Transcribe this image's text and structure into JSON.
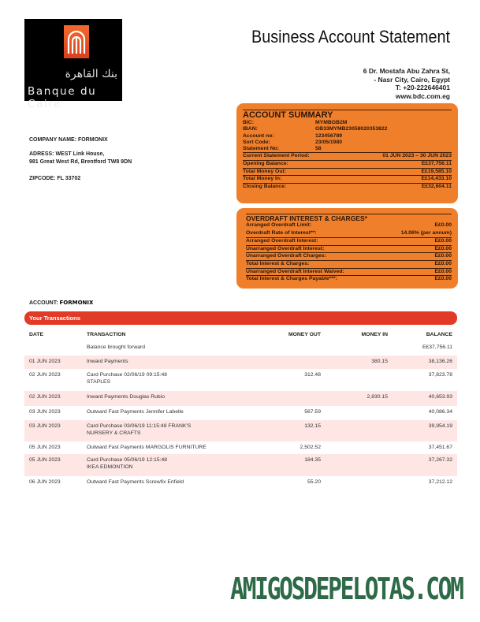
{
  "bank": {
    "name": "Banque du Caire",
    "name_ar": "بنك القاهرة",
    "brand_color": "#f26a2e"
  },
  "header": {
    "title": "Business Account Statement",
    "address": [
      "6 Dr. Mostafa Abu Zahra St,",
      "- Nasr City, Cairo, Egypt",
      "T: +20-222646401",
      "www.bdc.com.eg"
    ]
  },
  "customer": {
    "company": "COMPANY NAME: FORMONIX",
    "address_line1": "ADRESS: WEST Link House,",
    "address_line2": "981 Great West Rd, Brentford TW8 9DN",
    "zipcode": "ZIPCODE: FL 33702"
  },
  "summary": {
    "title": "ACCOUNT SUMMARY",
    "details": [
      {
        "k": "BIC:",
        "v": "MYMBGB2M"
      },
      {
        "k": "IBAN:",
        "v": "GB33MYMB23058020353822"
      },
      {
        "k": "Account no:",
        "v": "123456789"
      },
      {
        "k": "Sort Code:",
        "v": "23/05/1980"
      },
      {
        "k": "Statement No:",
        "v": "58"
      }
    ],
    "rows": [
      {
        "k": "Current Statement Period:",
        "v": "01 JUN 2023 – 30 JUN 2023"
      },
      {
        "k": "Opening Balance:",
        "v": "E£37,756.11"
      },
      {
        "k": "Total Money Out:",
        "v": "E£19,585.10"
      },
      {
        "k": "Total Money In:",
        "v": "E£14,433.10"
      },
      {
        "k": "Closing Balance:",
        "v": "E£32,604.11"
      }
    ]
  },
  "overdraft": {
    "title": "OVERDRAFT INTEREST & CHARGES*",
    "details": [
      {
        "k": "Arranged Overdraft Limit:",
        "v": "E£0.00"
      },
      {
        "k": "Overdraft Rate of Interest**:",
        "v": "14.06% (per annum)"
      }
    ],
    "rows": [
      {
        "k": "Arranged Overdraft Interest:",
        "v": "E£0.00"
      },
      {
        "k": "Unarranged Overdraft Interest:",
        "v": "E£0.00"
      },
      {
        "k": "Unarranged Overdraft Charges:",
        "v": "E£0.00"
      },
      {
        "k": "Total Interest & Charges:",
        "v": "E£0.00"
      },
      {
        "k": "Unarranged Overdraft Interest Waived:",
        "v": "E£0.00"
      },
      {
        "k": "Total Interest & Charges Payable***:",
        "v": "E£0.00"
      }
    ]
  },
  "account": {
    "label": "ACCOUNT:",
    "name": "FORMONIX"
  },
  "transactions": {
    "title": "Your Transactions",
    "columns": [
      "DATE",
      "TRANSACTION",
      "MONEY OUT",
      "MONEY IN",
      "BALANCE"
    ],
    "rows": [
      {
        "date": "",
        "desc": [
          "Balance brought forward"
        ],
        "out": "",
        "in": "",
        "bal": "E£37,756.11"
      },
      {
        "date": "01 JUN 2023",
        "desc": [
          "Inward Payments"
        ],
        "out": "",
        "in": "380.15",
        "bal": "38,136.26"
      },
      {
        "date": "02 JUN 2023",
        "desc": [
          "Card Purchase 02/06/19 09:15:48",
          "STAPLES"
        ],
        "out": "312.48",
        "in": "",
        "bal": "37,823.78"
      },
      {
        "date": "02 JUN 2023",
        "desc": [
          "Inward Payments Douglas Rubio"
        ],
        "out": "",
        "in": "2,830.15",
        "bal": "40,653.93"
      },
      {
        "date": "03 JUN 2023",
        "desc": [
          "Outward Fast Payments Jennifer Labelle"
        ],
        "out": "567.59",
        "in": "",
        "bal": "40,086.34"
      },
      {
        "date": "03 JUN 2023",
        "desc": [
          "Card Purchase 03/06/19 11:15:48 FRANK'S",
          "NURSERY & CRAFTS"
        ],
        "out": "132.15",
        "in": "",
        "bal": "39,954.19"
      },
      {
        "date": "05 JUN 2023",
        "desc": [
          "Outward Fast Payments MARGOLIS FURNITURE"
        ],
        "out": "2,502.52",
        "in": "",
        "bal": "37,451.67"
      },
      {
        "date": "05 JUN 2023",
        "desc": [
          "Card Purchase 05/06/19 12:15:48",
          "IKEA EDMONTION"
        ],
        "out": "184.35",
        "in": "",
        "bal": "37,267.32"
      },
      {
        "date": "06 JUN 2023",
        "desc": [
          "Outward Fast Payments Screwfix Enfield"
        ],
        "out": "55.20",
        "in": "",
        "bal": "37,212.12"
      }
    ]
  },
  "watermark": "AMIGOSDEPELOTAS.COM"
}
